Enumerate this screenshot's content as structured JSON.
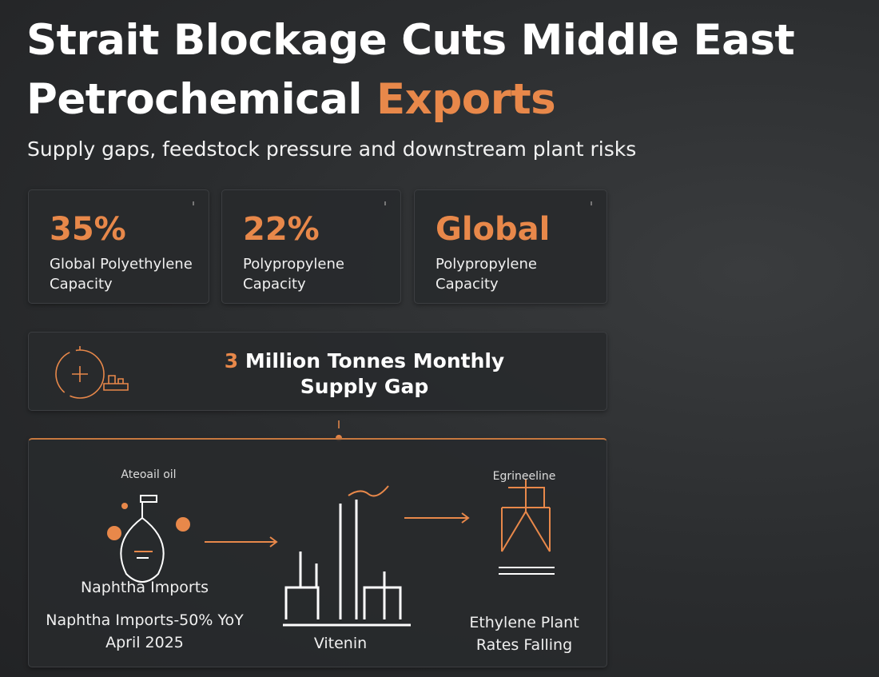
{
  "header": {
    "title": "Strait Blockage Cuts Middle East Petrochemical",
    "title_highlight": "Exports",
    "subtitle": "Supply gaps, feedstock pressure and downstream plant risks"
  },
  "stats": [
    {
      "value": "35%",
      "label": "Global Polyethylene Capacity"
    },
    {
      "value": "22%",
      "label": "Polypropylene Capacity"
    },
    {
      "value": "Global",
      "label": "Polypropylene Capacity"
    }
  ],
  "banner": {
    "number": "3",
    "text": "Million Tonnes Monthly Supply Gap"
  },
  "flow": {
    "steps": [
      {
        "caption": "Ateoail oil",
        "title": "Naphtha Imports",
        "detail_lines": [
          "Naphtha Imports-50% YoY",
          "April 2025"
        ]
      },
      {
        "title": "Vitenin"
      },
      {
        "caption": "Egrineeline",
        "title": "Ethylene Plant Rates Falling"
      }
    ]
  }
}
